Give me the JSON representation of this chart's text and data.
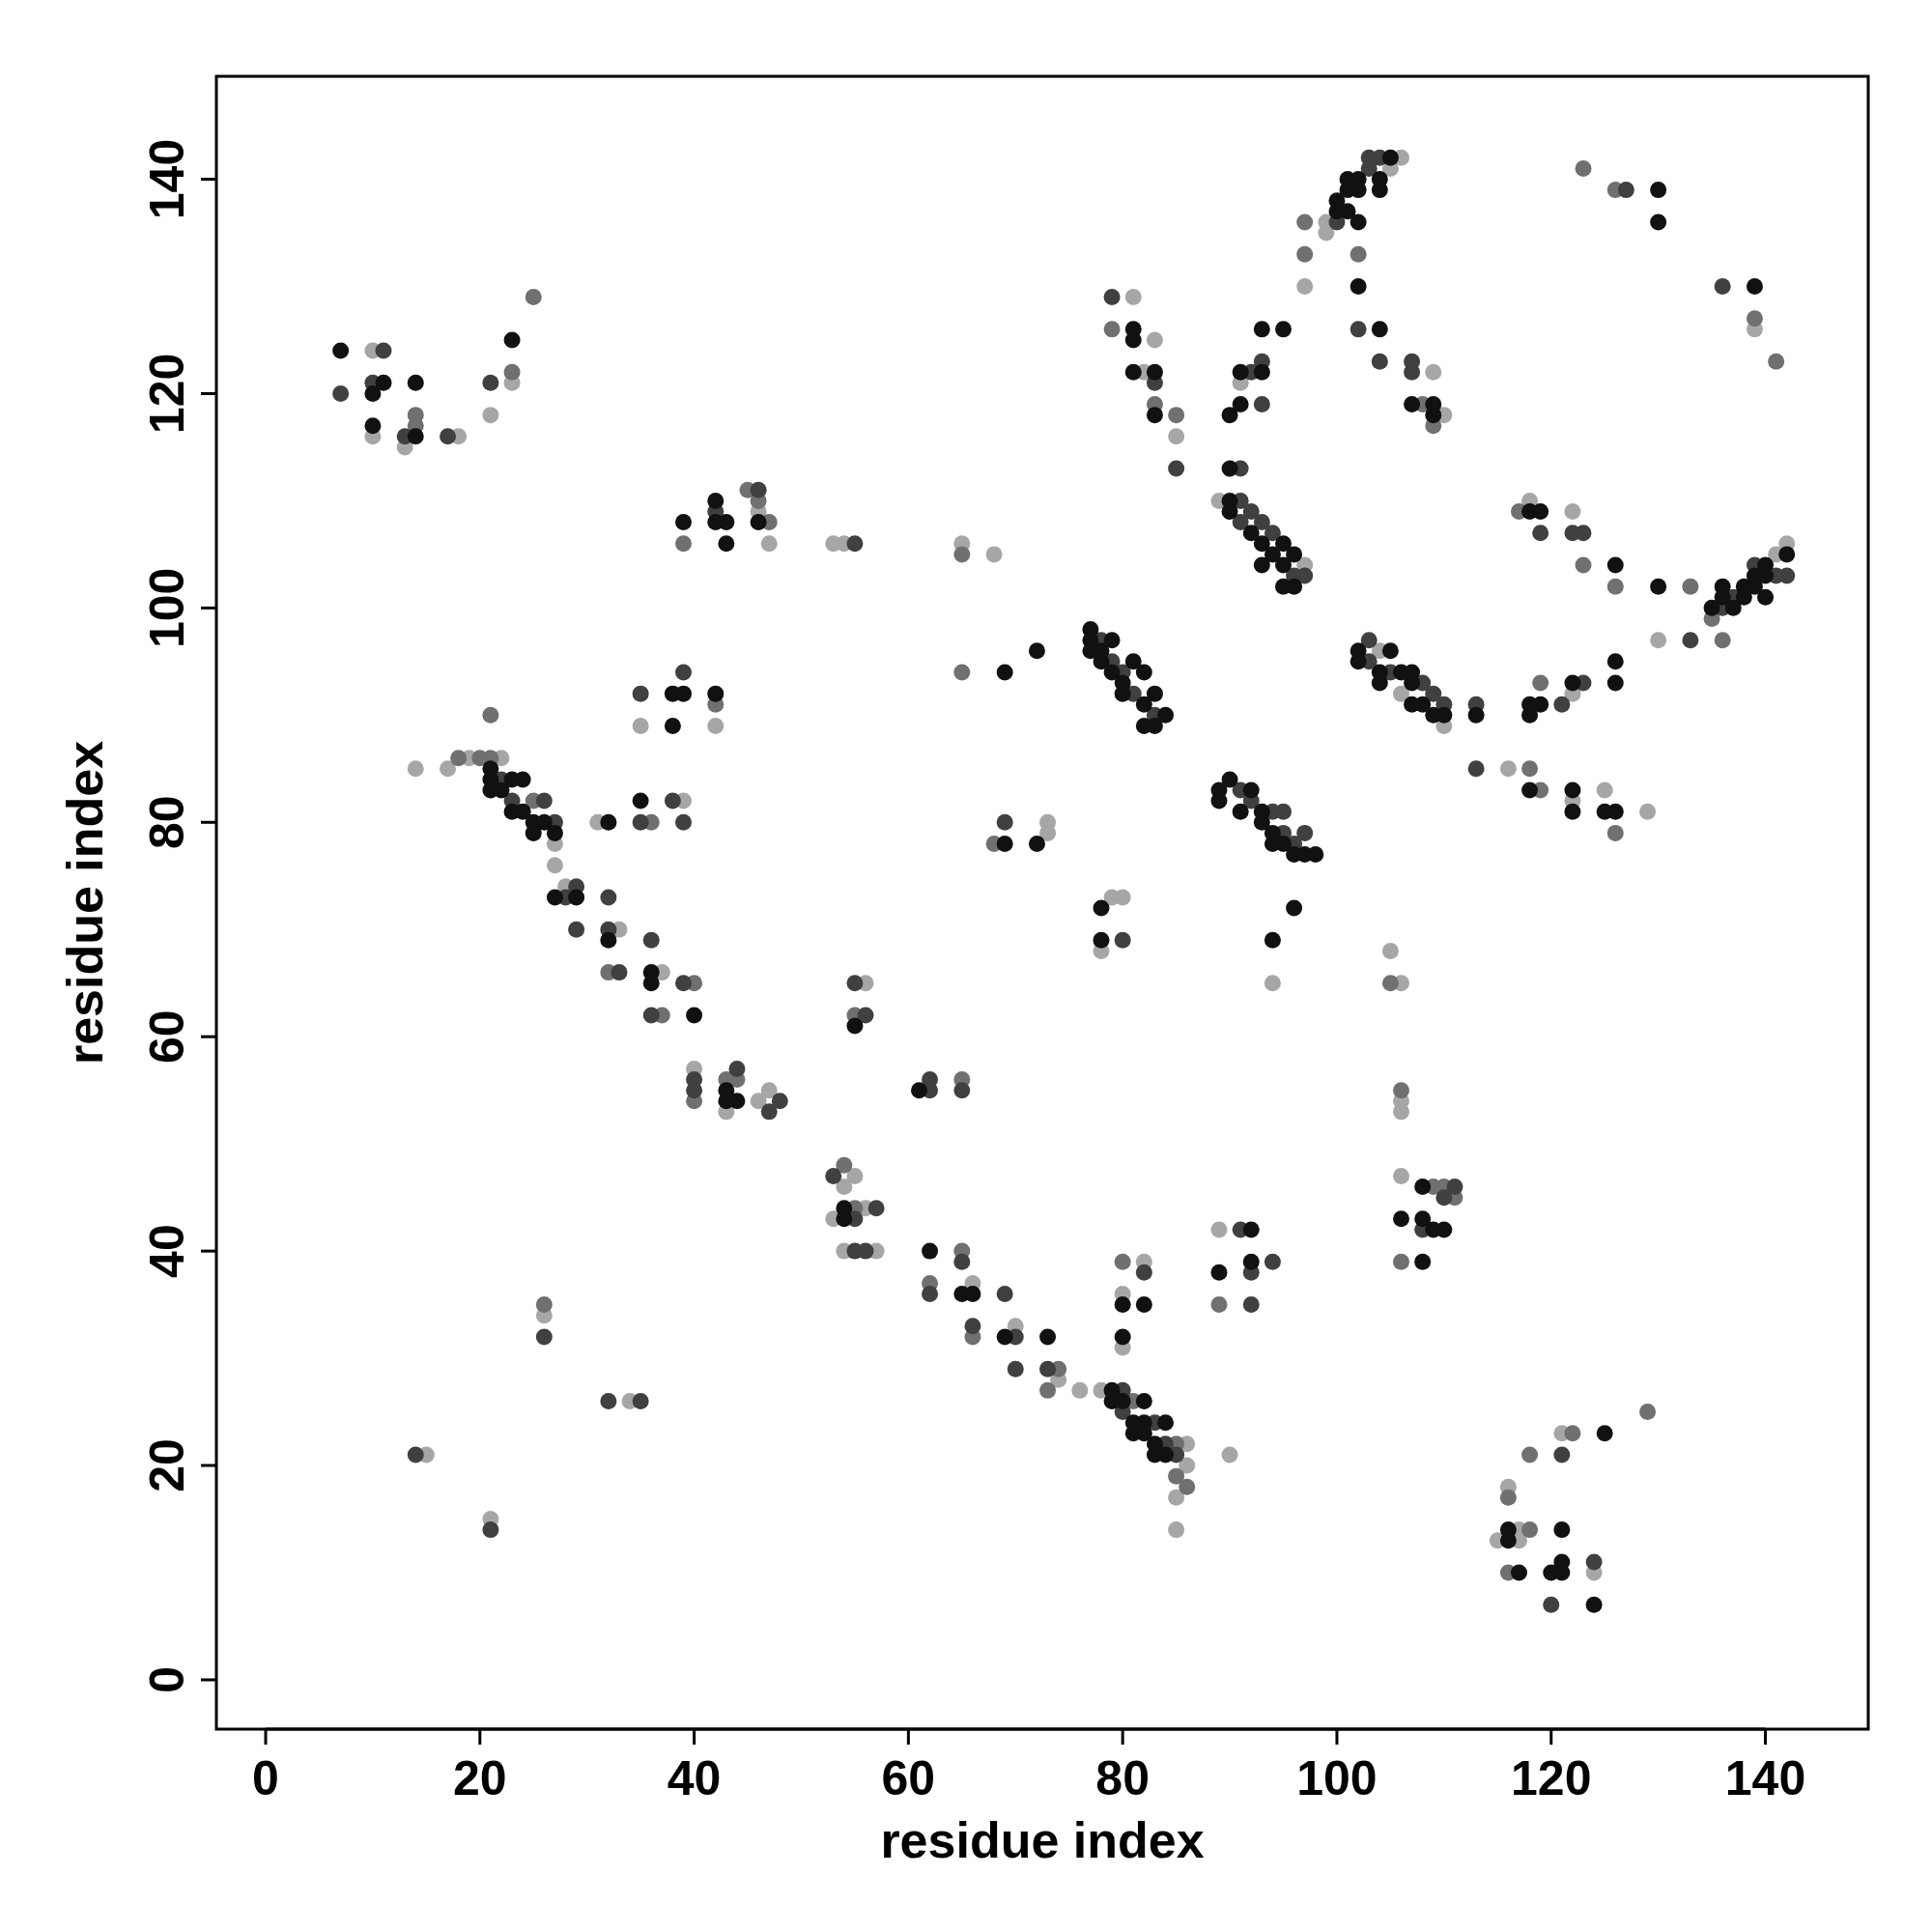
{
  "chart_data": {
    "type": "scatter",
    "xlabel": "residue index",
    "ylabel": "residue index",
    "xlim": [
      -4.6,
      149.6
    ],
    "ylim": [
      -4.6,
      149.6
    ],
    "xticks": [
      0,
      20,
      40,
      60,
      80,
      100,
      120,
      140
    ],
    "yticks": [
      0,
      20,
      40,
      60,
      80,
      100,
      120,
      140
    ],
    "marker": "circle",
    "series": [
      {
        "color": "#a6a6a6",
        "x": [
          10,
          10,
          13,
          18,
          21,
          23,
          46,
          47,
          53,
          54,
          65,
          68,
          35,
          39,
          42,
          31,
          14,
          17,
          19,
          22,
          27,
          27,
          28,
          33,
          37,
          40,
          43,
          46,
          47,
          53,
          54,
          55,
          56,
          54,
          57,
          56,
          66,
          70,
          74,
          76,
          78,
          85,
          86,
          86,
          85,
          90,
          80,
          80,
          82,
          89,
          78,
          79,
          80,
          94,
          73,
          73,
          89,
          97,
          91,
          82,
          83,
          85,
          81,
          97,
          99,
          99,
          105,
          106,
          109,
          110,
          104,
          106,
          110,
          116,
          122,
          125,
          129,
          122,
          122,
          118,
          130,
          141,
          142,
          139,
          105,
          106,
          106,
          106,
          106,
          116,
          115,
          117,
          117,
          121,
          124,
          26,
          15,
          34,
          21
        ],
        "values": [
          124,
          116,
          115,
          116,
          118,
          121,
          109,
          106,
          106,
          106,
          106,
          105,
          89,
          82,
          89,
          80,
          85,
          85,
          86,
          86,
          78,
          76,
          74,
          70,
          66,
          57,
          53,
          54,
          55,
          43,
          46,
          47,
          44,
          40,
          40,
          65,
          37,
          33,
          28,
          27,
          27,
          17,
          22,
          20,
          14,
          21,
          36,
          31,
          39,
          42,
          68,
          73,
          73,
          65,
          80,
          79,
          110,
          104,
          121,
          122,
          125,
          116,
          129,
          130,
          135,
          136,
          141,
          142,
          122,
          118,
          96,
          92,
          89,
          85,
          82,
          83,
          81,
          92,
          109,
          110,
          97,
          105,
          106,
          126,
          68,
          65,
          54,
          53,
          47,
          18,
          13,
          14,
          13,
          23,
          10,
          34,
          21,
          26,
          15
        ]
      },
      {
        "color": "#707070",
        "x": [
          14,
          14,
          25,
          23,
          39,
          45,
          46,
          47,
          65,
          36,
          42,
          21,
          18,
          20,
          21,
          25,
          32,
          37,
          40,
          40,
          43,
          44,
          54,
          55,
          55,
          65,
          62,
          65,
          66,
          68,
          65,
          74,
          73,
          81,
          85,
          85,
          86,
          80,
          89,
          83,
          85,
          79,
          97,
          97,
          102,
          108,
          109,
          118,
          119,
          126,
          119,
          126,
          123,
          117,
          133,
          135,
          136,
          123,
          126,
          139,
          141,
          105,
          106,
          109,
          110,
          111,
          106,
          116,
          116,
          118,
          118,
          122,
          129,
          26
        ],
        "values": [
          118,
          117,
          129,
          122,
          106,
          111,
          110,
          108,
          105,
          80,
          91,
          90,
          86,
          86,
          86,
          82,
          66,
          62,
          65,
          54,
          56,
          56,
          48,
          44,
          62,
          56,
          37,
          40,
          32,
          78,
          94,
          29,
          27,
          26,
          22,
          19,
          18,
          39,
          35,
          119,
          118,
          126,
          136,
          133,
          133,
          119,
          117,
          85,
          83,
          79,
          93,
          102,
          104,
          109,
          102,
          99,
          97,
          141,
          139,
          127,
          123,
          65,
          55,
          46,
          46,
          45,
          39,
          17,
          10,
          14,
          21,
          23,
          25,
          35
        ]
      },
      {
        "color": "#404040",
        "x": [
          7,
          11,
          10,
          13,
          17,
          21,
          42,
          46,
          55,
          35,
          39,
          35,
          38,
          39,
          22,
          23,
          26,
          27,
          28,
          29,
          29,
          32,
          32,
          33,
          36,
          36,
          39,
          40,
          40,
          44,
          47,
          48,
          53,
          55,
          57,
          55,
          56,
          55,
          56,
          62,
          62,
          65,
          62,
          65,
          66,
          69,
          70,
          70,
          73,
          80,
          80,
          83,
          84,
          85,
          82,
          91,
          92,
          92,
          94,
          80,
          69,
          78,
          79,
          80,
          81,
          83,
          91,
          92,
          94,
          95,
          95,
          96,
          97,
          91,
          91,
          92,
          93,
          94,
          96,
          97,
          91,
          92,
          93,
          93,
          79,
          83,
          85,
          100,
          103,
          103,
          104,
          102,
          104,
          107,
          107,
          103,
          103,
          105,
          108,
          109,
          110,
          113,
          113,
          121,
          123,
          122,
          123,
          119,
          133,
          136,
          137,
          139,
          141,
          142,
          127,
          136,
          108,
          111,
          110,
          121,
          120,
          124,
          26,
          14,
          32,
          35,
          21
        ],
        "values": [
          120,
          124,
          121,
          116,
          116,
          121,
          109,
          111,
          106,
          92,
          94,
          80,
          82,
          80,
          84,
          82,
          82,
          80,
          73,
          74,
          70,
          73,
          70,
          66,
          69,
          62,
          65,
          56,
          55,
          57,
          53,
          54,
          47,
          43,
          44,
          40,
          40,
          65,
          62,
          56,
          55,
          55,
          36,
          39,
          33,
          36,
          32,
          29,
          29,
          27,
          25,
          24,
          22,
          21,
          38,
          42,
          38,
          35,
          39,
          69,
          80,
          97,
          95,
          94,
          92,
          90,
          83,
          82,
          81,
          81,
          79,
          78,
          79,
          110,
          108,
          109,
          108,
          107,
          103,
          103,
          113,
          122,
          123,
          119,
          129,
          121,
          113,
          136,
          141,
          142,
          142,
          126,
          123,
          123,
          122,
          97,
          95,
          94,
          93,
          92,
          91,
          91,
          85,
          91,
          93,
          107,
          107,
          107,
          97,
          100,
          101,
          104,
          103,
          103,
          139,
          130,
          42,
          46,
          45,
          21,
          7,
          11,
          32,
          21,
          26,
          26,
          14
        ]
      },
      {
        "color": "#111111",
        "x": [
          7,
          11,
          10,
          10,
          14,
          14,
          23,
          39,
          42,
          42,
          43,
          43,
          46,
          38,
          39,
          38,
          42,
          35,
          32,
          21,
          21,
          23,
          24,
          21,
          22,
          23,
          24,
          25,
          26,
          25,
          27,
          27,
          29,
          32,
          36,
          36,
          40,
          43,
          44,
          43,
          54,
          54,
          55,
          61,
          62,
          65,
          66,
          69,
          73,
          79,
          79,
          80,
          81,
          82,
          82,
          82,
          81,
          83,
          83,
          84,
          84,
          80,
          80,
          82,
          89,
          92,
          92,
          78,
          78,
          94,
          96,
          69,
          72,
          69,
          72,
          77,
          77,
          77,
          78,
          78,
          79,
          79,
          80,
          81,
          82,
          82,
          83,
          82,
          83,
          84,
          80,
          89,
          89,
          90,
          92,
          93,
          94,
          94,
          95,
          96
        ],
        "values": [
          124,
          121,
          120,
          117,
          121,
          116,
          125,
          108,
          110,
          108,
          108,
          106,
          108,
          92,
          92,
          89,
          92,
          82,
          80,
          85,
          84,
          84,
          84,
          83,
          83,
          81,
          81,
          80,
          80,
          79,
          79,
          73,
          73,
          69,
          66,
          65,
          62,
          55,
          54,
          54,
          44,
          43,
          61,
          55,
          40,
          36,
          36,
          32,
          32,
          27,
          26,
          26,
          24,
          26,
          24,
          23,
          23,
          22,
          21,
          24,
          21,
          35,
          32,
          35,
          38,
          42,
          39,
          72,
          69,
          69,
          72,
          78,
          78,
          94,
          96,
          98,
          97,
          96,
          96,
          95,
          97,
          94,
          93,
          95,
          94,
          91,
          92,
          89,
          89,
          90,
          92,
          83,
          82,
          84,
          83,
          81,
          79,
          78,
          78,
          77
        ]
      },
      {
        "color": "#111111",
        "x": [
          97,
          98,
          93,
          91,
          90,
          90,
          92,
          93,
          94,
          95,
          95,
          96,
          96,
          93,
          95,
          90,
          90,
          91,
          91,
          93,
          93,
          95,
          81,
          81,
          81,
          83,
          83,
          100,
          100,
          101,
          101,
          101,
          102,
          102,
          102,
          102,
          104,
          104,
          105,
          104,
          107,
          109,
          109,
          102,
          102,
          104,
          104,
          105,
          106,
          107,
          107,
          107,
          108,
          109,
          110,
          113,
          118,
          122,
          122,
          125,
          126,
          118,
          119,
          118,
          122,
          126,
          126,
          126,
          118,
          119,
          130,
          135,
          136,
          136,
          137,
          138,
          138,
          139,
          139,
          140,
          140,
          140,
          142,
          130,
          130,
          139,
          108,
          106,
          108,
          109,
          110,
          108,
          116,
          116,
          117,
          121,
          121,
          120,
          121,
          124,
          125
        ],
        "values": [
          77,
          77,
          80,
          81,
          110,
          109,
          107,
          106,
          105,
          106,
          104,
          105,
          102,
          104,
          102,
          118,
          113,
          122,
          119,
          122,
          126,
          126,
          126,
          125,
          122,
          122,
          118,
          138,
          137,
          139,
          137,
          140,
          140,
          139,
          136,
          130,
          139,
          140,
          142,
          126,
          119,
          119,
          118,
          96,
          95,
          94,
          93,
          96,
          94,
          94,
          93,
          91,
          91,
          90,
          90,
          90,
          83,
          83,
          81,
          81,
          81,
          91,
          91,
          90,
          93,
          95,
          93,
          104,
          109,
          109,
          102,
          100,
          102,
          101,
          100,
          102,
          101,
          103,
          102,
          104,
          101,
          103,
          105,
          139,
          136,
          130,
          46,
          43,
          43,
          42,
          42,
          39,
          14,
          13,
          10,
          14,
          11,
          10,
          10,
          7,
          23
        ]
      }
    ]
  }
}
